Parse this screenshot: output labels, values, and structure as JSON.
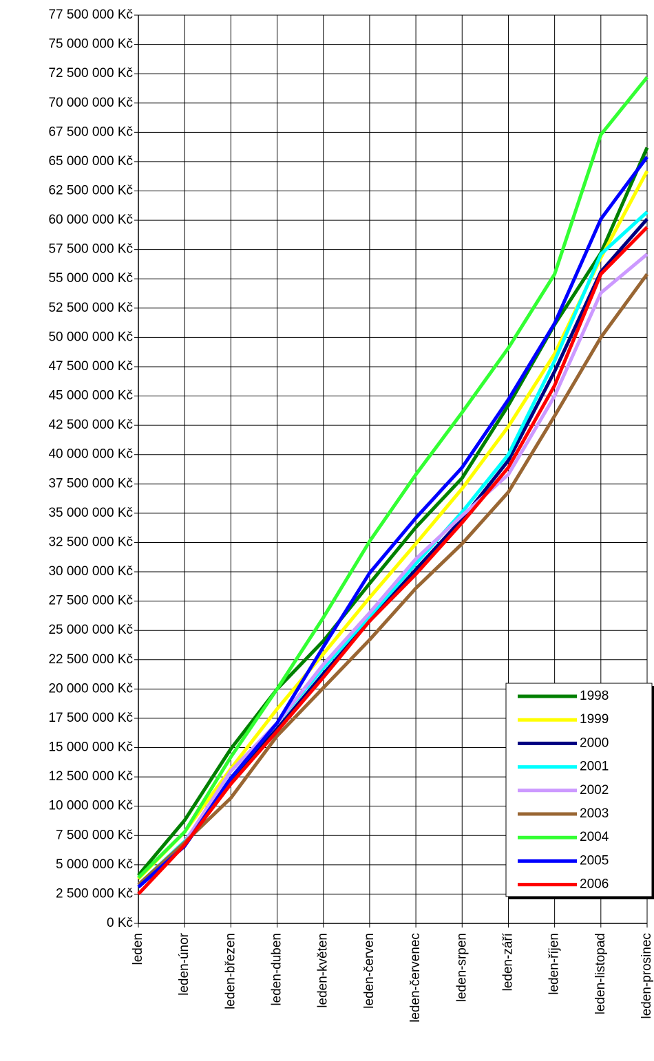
{
  "chart_data": {
    "type": "line",
    "categories": [
      "leden",
      "leden-únor",
      "leden-březen",
      "leden-duben",
      "leden-květen",
      "leden-červen",
      "leden-červenec",
      "leden-srpen",
      "leden-září",
      "leden-říjen",
      "leden-listopad",
      "leden-prosinec"
    ],
    "series": [
      {
        "name": "1998",
        "color": "#008000",
        "values": [
          4100000,
          8800000,
          14900000,
          20000000,
          24100000,
          29000000,
          33800000,
          38000000,
          44200000,
          51100000,
          57200000,
          66200000
        ]
      },
      {
        "name": "1999",
        "color": "#ffff00",
        "values": [
          3800000,
          7800000,
          13200000,
          18300000,
          23000000,
          27800000,
          32400000,
          37100000,
          42400000,
          48600000,
          56800000,
          64200000
        ]
      },
      {
        "name": "2000",
        "color": "#000080",
        "values": [
          3100000,
          6600000,
          12200000,
          16600000,
          21300000,
          25800000,
          30200000,
          34500000,
          39500000,
          47100000,
          55600000,
          60100000
        ]
      },
      {
        "name": "2001",
        "color": "#00ffff",
        "values": [
          3300000,
          7000000,
          12400000,
          17100000,
          21800000,
          26200000,
          30700000,
          35100000,
          40000000,
          48000000,
          57100000,
          60700000
        ]
      },
      {
        "name": "2002",
        "color": "#cc99ff",
        "values": [
          3300000,
          6900000,
          13000000,
          17100000,
          22100000,
          26500000,
          31100000,
          34800000,
          38300000,
          45000000,
          53800000,
          57100000
        ]
      },
      {
        "name": "2003",
        "color": "#996633",
        "values": [
          3300000,
          6900000,
          10700000,
          16000000,
          20100000,
          24200000,
          28600000,
          32400000,
          36800000,
          43300000,
          50000000,
          55400000
        ]
      },
      {
        "name": "2004",
        "color": "#33ff33",
        "values": [
          3900000,
          7800000,
          14200000,
          20000000,
          26100000,
          32600000,
          38300000,
          43600000,
          49100000,
          55400000,
          67300000,
          72200000
        ]
      },
      {
        "name": "2005",
        "color": "#0000ff",
        "values": [
          3100000,
          6600000,
          12400000,
          17100000,
          23600000,
          29900000,
          34600000,
          38900000,
          44700000,
          51200000,
          60100000,
          65400000
        ]
      },
      {
        "name": "2006",
        "color": "#ff0000",
        "values": [
          2500000,
          6700000,
          11900000,
          16400000,
          21000000,
          25800000,
          29800000,
          34200000,
          38900000,
          45900000,
          55400000,
          59400000
        ]
      }
    ],
    "ylim": [
      0,
      77500000
    ],
    "yticks": [
      {
        "value": 0,
        "label": "0 Kč"
      },
      {
        "value": 2500000,
        "label": "2 500 000 Kč"
      },
      {
        "value": 5000000,
        "label": "5 000 000 Kč"
      },
      {
        "value": 7500000,
        "label": "7 500 000 Kč"
      },
      {
        "value": 10000000,
        "label": "10 000 000 Kč"
      },
      {
        "value": 12500000,
        "label": "12 500 000 Kč"
      },
      {
        "value": 15000000,
        "label": "15 000 000 Kč"
      },
      {
        "value": 17500000,
        "label": "17 500 000 Kč"
      },
      {
        "value": 20000000,
        "label": "20 000 000 Kč"
      },
      {
        "value": 22500000,
        "label": "22 500 000 Kč"
      },
      {
        "value": 25000000,
        "label": "25 000 000 Kč"
      },
      {
        "value": 27500000,
        "label": "27 500 000 Kč"
      },
      {
        "value": 30000000,
        "label": "30 000 000 Kč"
      },
      {
        "value": 32500000,
        "label": "32 500 000 Kč"
      },
      {
        "value": 35000000,
        "label": "35 000 000 Kč"
      },
      {
        "value": 37500000,
        "label": "37 500 000 Kč"
      },
      {
        "value": 40000000,
        "label": "40 000 000 Kč"
      },
      {
        "value": 42500000,
        "label": "42 500 000 Kč"
      },
      {
        "value": 45000000,
        "label": "45 000 000 Kč"
      },
      {
        "value": 47500000,
        "label": "47 500 000 Kč"
      },
      {
        "value": 50000000,
        "label": "50 000 000 Kč"
      },
      {
        "value": 52500000,
        "label": "52 500 000 Kč"
      },
      {
        "value": 55000000,
        "label": "55 000 000 Kč"
      },
      {
        "value": 57500000,
        "label": "57 500 000 Kč"
      },
      {
        "value": 60000000,
        "label": "60 000 000 Kč"
      },
      {
        "value": 62500000,
        "label": "62 500 000 Kč"
      },
      {
        "value": 65000000,
        "label": "65 000 000 Kč"
      },
      {
        "value": 67500000,
        "label": "67 500 000 Kč"
      },
      {
        "value": 70000000,
        "label": "70 000 000 Kč"
      },
      {
        "value": 72500000,
        "label": "72 500 000 Kč"
      },
      {
        "value": 75000000,
        "label": "75 000 000 Kč"
      },
      {
        "value": 77500000,
        "label": "77 500 000 Kč"
      }
    ],
    "grid": true
  }
}
